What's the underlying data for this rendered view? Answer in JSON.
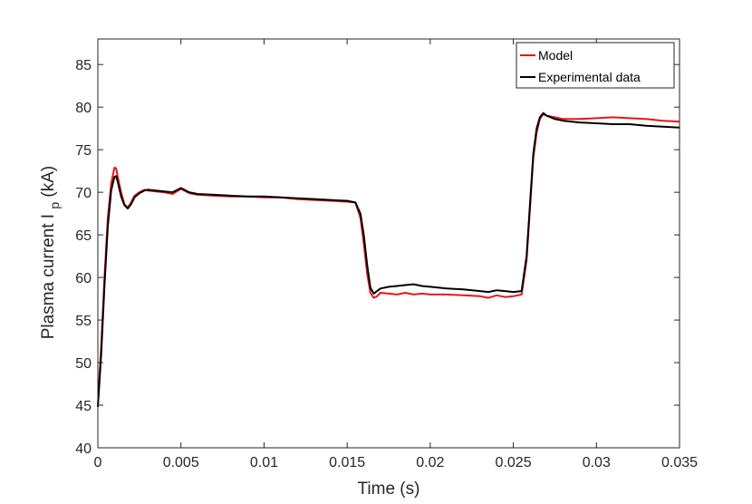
{
  "chart_data": {
    "type": "line",
    "title": "",
    "xlabel": "Time (s)",
    "ylabel": {
      "prefix": "Plasma current  I",
      "subscript": "p",
      "suffix": "  (kA)"
    },
    "xlim": [
      0,
      0.035
    ],
    "ylim": [
      40,
      88
    ],
    "x_ticks": [
      "0",
      "0.005",
      "0.01",
      "0.015",
      "0.02",
      "0.025",
      "0.03",
      "0.035"
    ],
    "y_ticks": [
      "40",
      "45",
      "50",
      "55",
      "60",
      "65",
      "70",
      "75",
      "80",
      "85"
    ],
    "grid": false,
    "legend_position": "top-right",
    "colors": {
      "model": "#e8161b",
      "experimental": "#000000",
      "axis": "#262626"
    },
    "series": [
      {
        "name": "Model",
        "color": "#e8161b",
        "x": [
          0,
          0.0002,
          0.0004,
          0.0006,
          0.0008,
          0.001,
          0.0011,
          0.0012,
          0.0014,
          0.0016,
          0.0018,
          0.002,
          0.0022,
          0.0025,
          0.0028,
          0.003,
          0.0035,
          0.004,
          0.0045,
          0.005,
          0.0055,
          0.006,
          0.007,
          0.008,
          0.009,
          0.01,
          0.011,
          0.012,
          0.013,
          0.014,
          0.015,
          0.0155,
          0.0158,
          0.016,
          0.0162,
          0.0164,
          0.0166,
          0.0168,
          0.017,
          0.0175,
          0.018,
          0.0185,
          0.019,
          0.0195,
          0.02,
          0.021,
          0.022,
          0.023,
          0.0235,
          0.024,
          0.0245,
          0.025,
          0.0255,
          0.0258,
          0.026,
          0.0262,
          0.0264,
          0.0266,
          0.0268,
          0.027,
          0.0275,
          0.028,
          0.029,
          0.03,
          0.031,
          0.032,
          0.033,
          0.034,
          0.035
        ],
        "y": [
          45,
          52,
          60,
          67,
          71,
          72.9,
          72.8,
          71.8,
          70,
          68.6,
          68.2,
          68.8,
          69.6,
          70,
          70.3,
          70.2,
          70.1,
          70,
          69.8,
          70.4,
          69.9,
          69.7,
          69.6,
          69.5,
          69.5,
          69.4,
          69.4,
          69.2,
          69.1,
          69,
          68.9,
          68.8,
          67,
          64,
          60.5,
          58.2,
          57.6,
          57.8,
          58.2,
          58.1,
          58,
          58.2,
          58,
          58.1,
          58,
          58,
          57.9,
          57.8,
          57.6,
          57.9,
          57.7,
          57.8,
          58,
          62,
          68,
          74,
          77,
          78.6,
          79.2,
          79,
          78.8,
          78.6,
          78.6,
          78.7,
          78.8,
          78.7,
          78.6,
          78.4,
          78.3
        ]
      },
      {
        "name": "Experimental data",
        "color": "#000000",
        "x": [
          0,
          0.0002,
          0.0004,
          0.0006,
          0.0008,
          0.001,
          0.0011,
          0.0012,
          0.0014,
          0.0016,
          0.0018,
          0.002,
          0.0022,
          0.0025,
          0.0028,
          0.003,
          0.0035,
          0.004,
          0.0045,
          0.005,
          0.0055,
          0.006,
          0.007,
          0.008,
          0.009,
          0.01,
          0.011,
          0.012,
          0.013,
          0.014,
          0.015,
          0.0155,
          0.0158,
          0.016,
          0.0162,
          0.0164,
          0.0166,
          0.0168,
          0.017,
          0.0175,
          0.018,
          0.0185,
          0.019,
          0.0195,
          0.02,
          0.021,
          0.022,
          0.023,
          0.0235,
          0.024,
          0.0245,
          0.025,
          0.0255,
          0.0258,
          0.026,
          0.0262,
          0.0264,
          0.0266,
          0.0268,
          0.027,
          0.0275,
          0.028,
          0.029,
          0.03,
          0.031,
          0.032,
          0.033,
          0.034,
          0.035
        ],
        "y": [
          44.8,
          51,
          59,
          66,
          70.2,
          71.8,
          71.9,
          71.2,
          69.5,
          68.5,
          68.1,
          68.6,
          69.4,
          69.9,
          70.2,
          70.3,
          70.2,
          70.1,
          70,
          70.5,
          70,
          69.8,
          69.7,
          69.6,
          69.5,
          69.5,
          69.4,
          69.3,
          69.2,
          69.1,
          69,
          68.8,
          67.5,
          65,
          61.5,
          58.8,
          58.1,
          58.4,
          58.7,
          58.9,
          59,
          59.1,
          59.2,
          59,
          58.9,
          58.7,
          58.6,
          58.4,
          58.3,
          58.5,
          58.4,
          58.3,
          58.4,
          62.5,
          68.5,
          74.5,
          77.5,
          78.8,
          79.3,
          79,
          78.6,
          78.4,
          78.2,
          78.1,
          78,
          78,
          77.8,
          77.7,
          77.6
        ]
      }
    ]
  }
}
